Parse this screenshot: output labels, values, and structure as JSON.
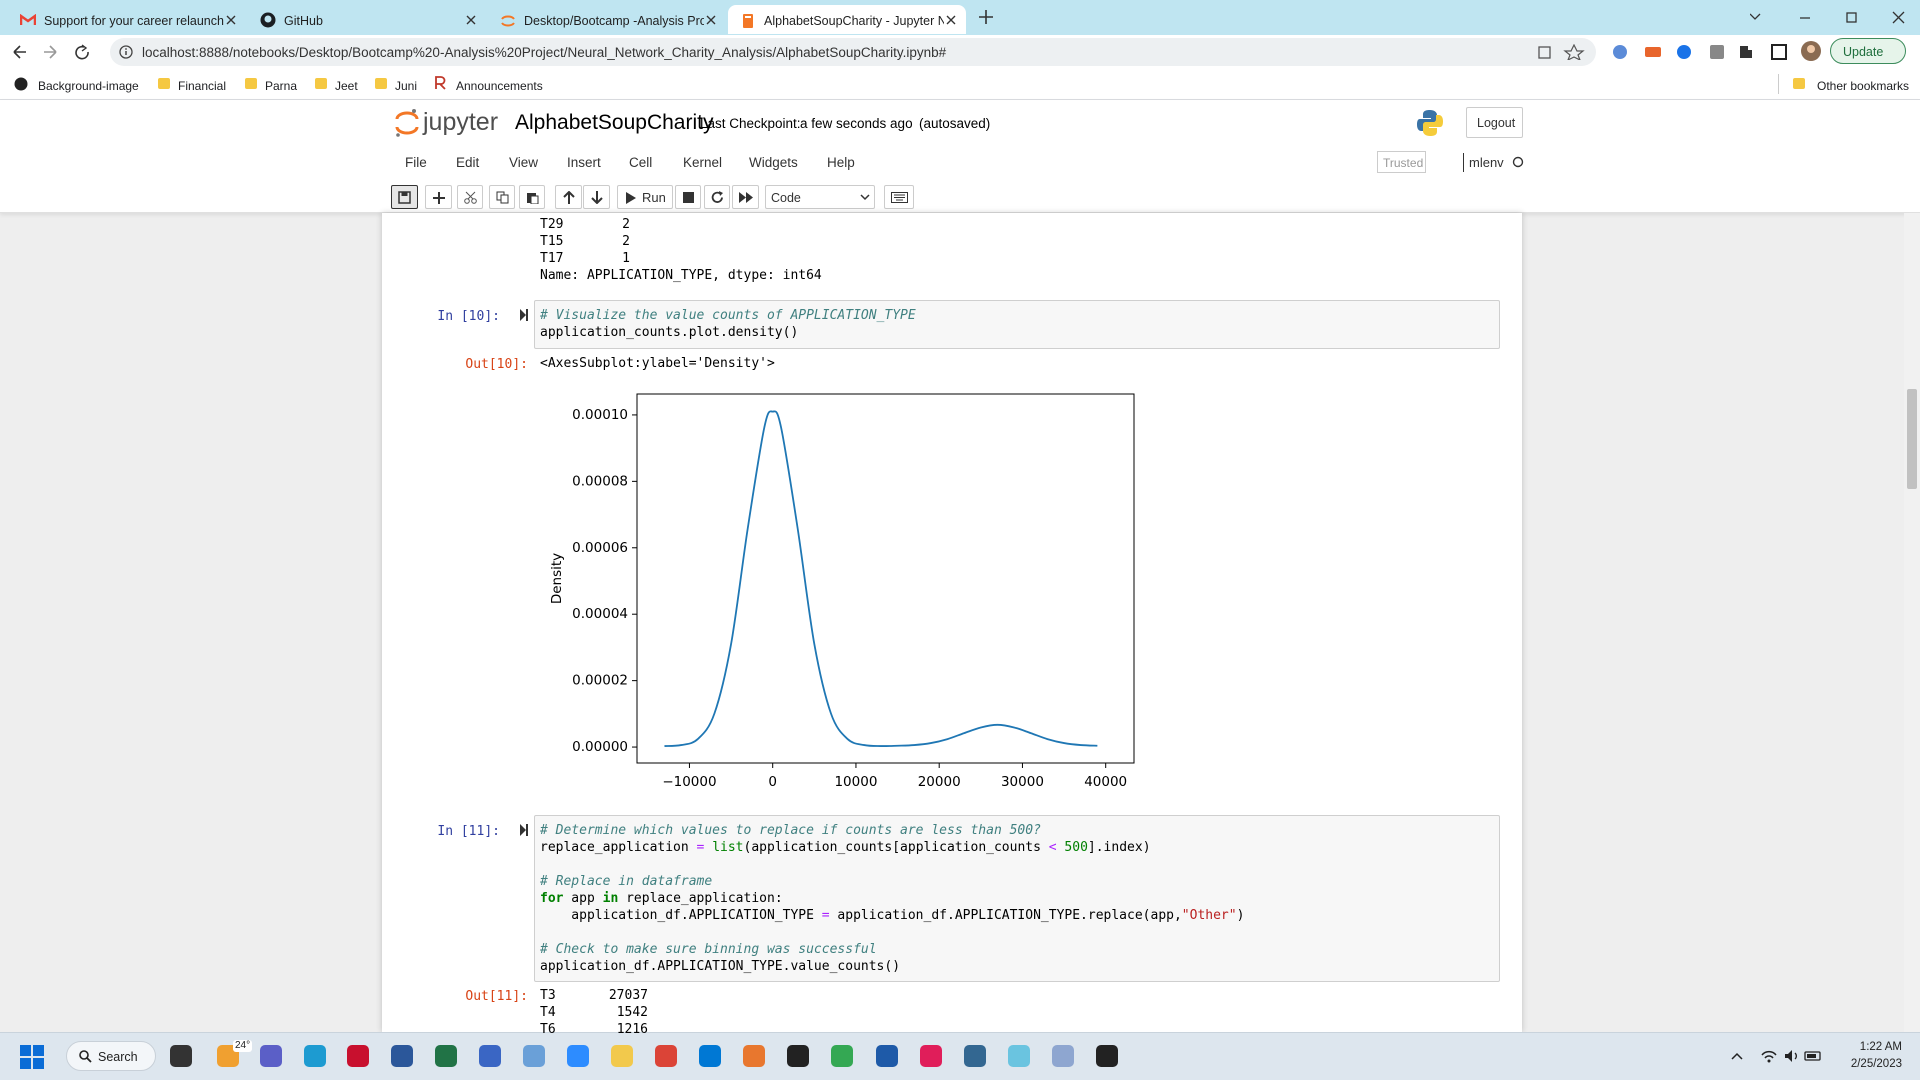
{
  "browser": {
    "tabs": [
      "Support for your career relaunch",
      "GitHub",
      "Desktop/Bootcamp -Analysis Pro",
      "AlphabetSoupCharity - Jupyter N"
    ],
    "url": "localhost:8888/notebooks/Desktop/Bootcamp%20-Analysis%20Project/Neural_Network_Charity_Analysis/AlphabetSoupCharity.ipynb#",
    "bookmarks": [
      "Background-image",
      "Financial",
      "Parna",
      "Jeet",
      "Juni",
      "Announcements"
    ],
    "other_bookmarks": "Other bookmarks",
    "update": "Update"
  },
  "jupyter": {
    "logo": "jupyter",
    "notebook_name": "AlphabetSoupCharity",
    "checkpoint_label": "Last Checkpoint:",
    "checkpoint": "a few seconds ago",
    "autosaved": "(autosaved)",
    "logout": "Logout",
    "menu": [
      "File",
      "Edit",
      "View",
      "Insert",
      "Cell",
      "Kernel",
      "Widgets",
      "Help"
    ],
    "trusted": "Trusted",
    "kernel": "mlenv",
    "run": "Run",
    "cell_type": "Code"
  },
  "notebook": {
    "prev_output": {
      "rows": [
        [
          "T29",
          2
        ],
        [
          "T15",
          2
        ],
        [
          "T17",
          1
        ]
      ],
      "footer": "Name: APPLICATION_TYPE, dtype: int64"
    },
    "cell10": {
      "prompt": "In [10]:",
      "code": [
        "# Visualize the value counts of APPLICATION_TYPE",
        "application_counts.plot.density()"
      ],
      "out_prompt": "Out[10]:",
      "out_text": "<AxesSubplot:ylabel='Density'>",
      "chart_data": {
        "type": "line",
        "y_label": "Density",
        "color": "#1f77b4",
        "x": [
          -13000,
          -11000,
          -9000,
          -7000,
          -5000,
          -3000,
          -1000,
          0,
          1000,
          3000,
          5000,
          7000,
          9000,
          11000,
          13000,
          15000,
          17000,
          19000,
          21000,
          23000,
          25000,
          27000,
          29000,
          31000,
          33000,
          35000,
          37000,
          39000
        ],
        "values": [
          3e-07,
          6e-07,
          2.4e-06,
          1.01e-05,
          3.1e-05,
          6.58e-05,
          9.63e-05,
          0.000101,
          9.63e-05,
          6.58e-05,
          3.1e-05,
          1.01e-05,
          2.4e-06,
          6e-07,
          3e-07,
          4e-07,
          6e-07,
          1.2e-06,
          2.4e-06,
          4.2e-06,
          5.9e-06,
          6.7e-06,
          5.9e-06,
          4.2e-06,
          2.4e-06,
          1.2e-06,
          6e-07,
          4e-07
        ],
        "xlim": [
          -16300,
          43400
        ],
        "ylim": [
          -4.8e-06,
          0.0001063
        ],
        "xticks": [
          {
            "value": -10000,
            "label": "−10000"
          },
          0,
          10000,
          20000,
          30000,
          40000
        ],
        "yticks": [
          {
            "value": 0,
            "label": "0.00000"
          },
          {
            "value": 2e-05,
            "label": "0.00002"
          },
          {
            "value": 4e-05,
            "label": "0.00004"
          },
          {
            "value": 6e-05,
            "label": "0.00006"
          },
          {
            "value": 8e-05,
            "label": "0.00008"
          },
          {
            "value": 0.0001,
            "label": "0.00010"
          }
        ]
      }
    },
    "cell11": {
      "prompt": "In [11]:",
      "code_groups": [
        [
          "# Determine which values to replace if counts are less than 500?",
          "replace_application = list(application_counts[application_counts < 500].index)"
        ],
        [
          "# Replace in dataframe",
          "for app in replace_application:",
          "    application_df.APPLICATION_TYPE = application_df.APPLICATION_TYPE.replace(app,\"Other\")"
        ],
        [
          "# Check to make sure binning was successful",
          "application_df.APPLICATION_TYPE.value_counts()"
        ]
      ],
      "out_prompt": "Out[11]:",
      "output_rows": [
        [
          "T3",
          27037
        ],
        [
          "T4",
          1542
        ],
        [
          "T6",
          1216
        ]
      ]
    }
  },
  "taskbar": {
    "search": "Search",
    "weather": "24°",
    "time": "1:22 AM",
    "date": "2/25/2023"
  }
}
